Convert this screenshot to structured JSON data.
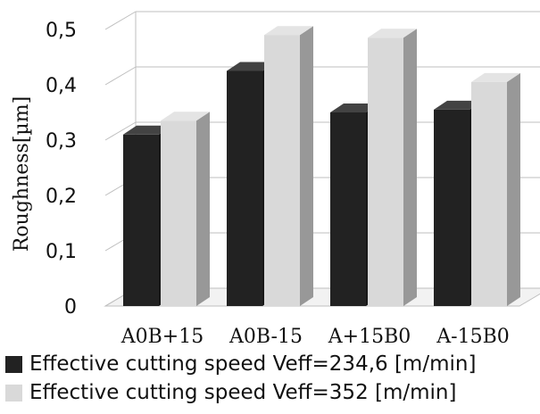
{
  "chart_data": {
    "type": "bar",
    "style": "3d-clustered-column",
    "categories": [
      "A0B+15",
      "A0B-15",
      "A+15B0",
      "A-15B0"
    ],
    "series": [
      {
        "name": "Effective cutting speed Veff=234,6 [m/min]",
        "color": "#222222",
        "values": [
          0.31,
          0.425,
          0.35,
          0.355
        ]
      },
      {
        "name": "Effective cutting speed Veff=352 [m/min]",
        "color": "#d9d9d9",
        "values": [
          0.335,
          0.49,
          0.485,
          0.405
        ]
      }
    ],
    "ylabel": "Roughness[µm]",
    "xlabel": "",
    "yticks": [
      "0",
      "0,1",
      "0,2",
      "0,3",
      "0,4",
      "0,5"
    ],
    "ylim": [
      0,
      0.5
    ],
    "grid": true,
    "legend_position": "bottom"
  }
}
